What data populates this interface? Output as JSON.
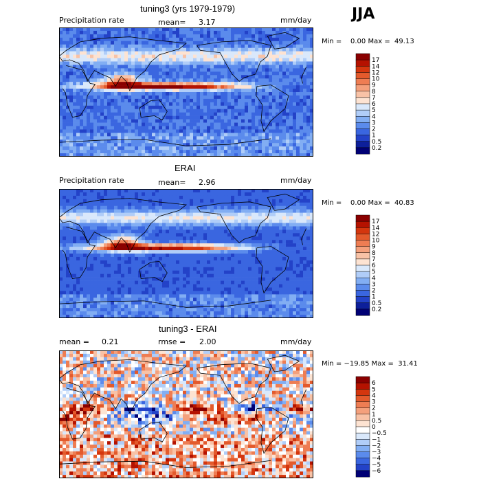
{
  "season": "JJA",
  "chart_data": [
    {
      "type": "heatmap",
      "title": "tuning3 (yrs 1979-1979)",
      "variable": "Precipitation rate",
      "mean_label": "mean=",
      "mean_value": "3.17",
      "units": "mm/day",
      "minmax": "Min =    0.00 Max =  49.13",
      "levels": [
        "17",
        "14",
        "12",
        "10",
        "9",
        "8",
        "7",
        "6",
        "5",
        "4",
        "3",
        "2",
        "1",
        "0.5",
        "0.2"
      ],
      "colors": [
        "#8a0000",
        "#b51200",
        "#d4360e",
        "#e35a2c",
        "#ee7d53",
        "#f4a07c",
        "#f8c2a6",
        "#fde3d2",
        "#d9e8fb",
        "#b0cdf8",
        "#82aef3",
        "#5b8bec",
        "#3a66e0",
        "#2342c8",
        "#0d1f9a",
        "#000075"
      ],
      "field": {
        "itcz": 0.85,
        "noise": 0.55,
        "seed": 11
      }
    },
    {
      "type": "heatmap",
      "title": "ERAI",
      "variable": "Precipitation rate",
      "mean_label": "mean=",
      "mean_value": "2.96",
      "units": "mm/day",
      "minmax": "Min =    0.00 Max =  40.83",
      "levels": [
        "17",
        "14",
        "12",
        "10",
        "9",
        "8",
        "7",
        "6",
        "5",
        "4",
        "3",
        "2",
        "1",
        "0.5",
        "0.2"
      ],
      "colors": [
        "#8a0000",
        "#b51200",
        "#d4360e",
        "#e35a2c",
        "#ee7d53",
        "#f4a07c",
        "#f8c2a6",
        "#fde3d2",
        "#d9e8fb",
        "#b0cdf8",
        "#82aef3",
        "#5b8bec",
        "#3a66e0",
        "#2342c8",
        "#0d1f9a",
        "#000075"
      ],
      "field": {
        "itcz": 0.8,
        "noise": 0.3,
        "seed": 5
      }
    },
    {
      "type": "heatmap",
      "title": "tuning3 - ERAI",
      "mean_label": "mean =",
      "mean_value": "0.21",
      "rmse_label": "rmse =",
      "rmse_value": "2.00",
      "units": "mm/day",
      "minmax": "Min = −19.85 Max =  31.41",
      "levels": [
        "6",
        "5",
        "4",
        "3",
        "2",
        "1",
        "0.5",
        "0",
        "−0.5",
        "−1",
        "−2",
        "−3",
        "−4",
        "−5",
        "−6"
      ],
      "colors": [
        "#8a0000",
        "#b51200",
        "#d4360e",
        "#e35a2c",
        "#ee7d53",
        "#f4a07c",
        "#f8c2a6",
        "#fde3d2",
        "#ffffff",
        "#d9e8fb",
        "#b0cdf8",
        "#82aef3",
        "#5b8bec",
        "#3a66e0",
        "#2342c8",
        "#000075"
      ],
      "field": {
        "diff": true,
        "noise": 0.6,
        "seed": 3
      }
    }
  ]
}
